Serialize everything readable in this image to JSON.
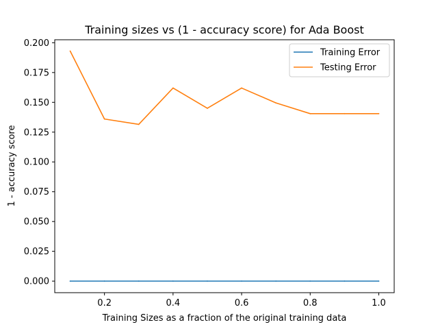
{
  "chart_data": {
    "type": "line",
    "title": "Training sizes vs (1 - accuracy score) for Ada Boost",
    "xlabel": "Training Sizes as a fraction of the original training data",
    "ylabel": "1 - accuracy score",
    "x": [
      0.1,
      0.2,
      0.3,
      0.4,
      0.5,
      0.6,
      0.7,
      0.8,
      0.9,
      1.0
    ],
    "xlim": [
      0.055,
      1.045
    ],
    "ylim": [
      -0.0097,
      0.2025
    ],
    "xticks": [
      "0.2",
      "0.4",
      "0.6",
      "0.8",
      "1.0"
    ],
    "yticks": [
      "0.000",
      "0.025",
      "0.050",
      "0.075",
      "0.100",
      "0.125",
      "0.150",
      "0.175",
      "0.200"
    ],
    "grid": false,
    "legend_position": "top-right",
    "series": [
      {
        "name": "Training Error",
        "color": "#1f77b4",
        "values": [
          0.0,
          0.0,
          0.0,
          0.0,
          0.0,
          0.0,
          0.0,
          0.0,
          0.0,
          0.0
        ]
      },
      {
        "name": "Testing Error",
        "color": "#ff7f0e",
        "values": [
          0.193,
          0.136,
          0.1315,
          0.162,
          0.145,
          0.162,
          0.1495,
          0.1405,
          0.1405,
          0.1405
        ]
      }
    ]
  }
}
